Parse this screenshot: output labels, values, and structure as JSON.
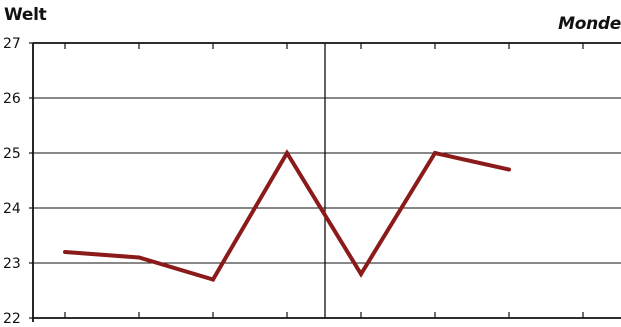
{
  "chart_data": {
    "type": "line",
    "title_left": "Welt",
    "title_right": "Monde",
    "xlabel": "",
    "ylabel": "",
    "x": [
      1,
      2,
      3,
      4,
      5,
      6,
      7
    ],
    "series": [
      {
        "values": [
          23.2,
          23.1,
          22.7,
          25.0,
          22.8,
          25.0,
          24.7
        ],
        "color": "#8b1a1a"
      }
    ],
    "ylim": [
      22,
      27
    ],
    "yticks": [
      22,
      23,
      24,
      25,
      26,
      27
    ],
    "grid": true,
    "colors": {
      "line": "#8b1a1a",
      "grid": "#111111",
      "text": "#111111"
    }
  }
}
